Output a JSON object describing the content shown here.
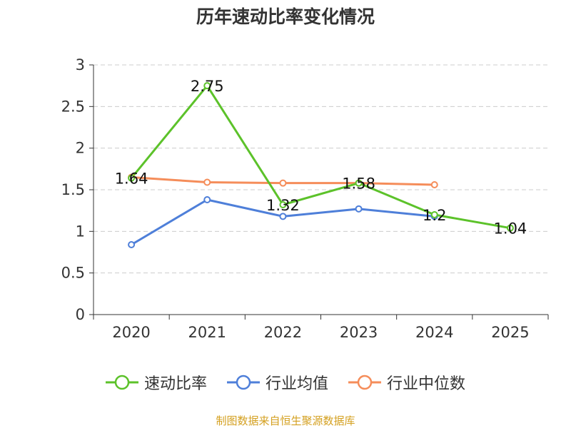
{
  "chart_data": {
    "type": "line",
    "title": "历年速动比率变化情况",
    "categories": [
      "2020",
      "2021",
      "2022",
      "2023",
      "2024",
      "2025"
    ],
    "ylim": [
      0,
      3
    ],
    "yticks": [
      0,
      0.5,
      1,
      1.5,
      2,
      2.5,
      3
    ],
    "ytick_labels": [
      "0",
      "0.5",
      "1",
      "1.5",
      "2",
      "2.5",
      "3"
    ],
    "grid": true,
    "legend_position": "bottom",
    "series": [
      {
        "name": "速动比率",
        "color": "#5cc22a",
        "values": [
          1.64,
          2.75,
          1.32,
          1.58,
          1.2,
          1.04
        ],
        "labels": [
          "1.64",
          "2.75",
          "1.32",
          "1.58",
          "1.2",
          "1.04"
        ]
      },
      {
        "name": "行业均值",
        "color": "#4e7fd9",
        "values": [
          0.84,
          1.38,
          1.18,
          1.27,
          1.18,
          null
        ]
      },
      {
        "name": "行业中位数",
        "color": "#f58d5a",
        "values": [
          1.65,
          1.59,
          1.58,
          1.58,
          1.56,
          null
        ]
      }
    ],
    "source": "制图数据来自恒生聚源数据库"
  }
}
